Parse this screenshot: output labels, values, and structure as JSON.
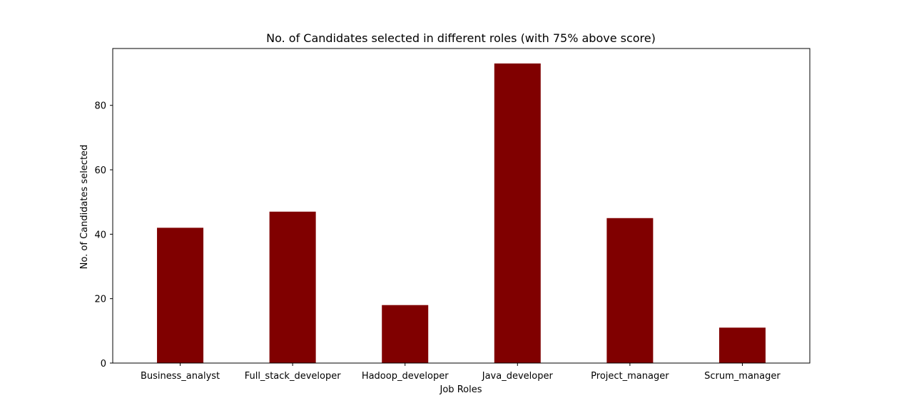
{
  "chart_data": {
    "type": "bar",
    "title": "No. of Candidates selected in different roles (with 75% above score)",
    "xlabel": "Job Roles",
    "ylabel": "No. of Candidates selected",
    "categories": [
      "Business_analyst",
      "Full_stack_developer",
      "Hadoop_developer",
      "Java_developer",
      "Project_manager",
      "Scrum_manager"
    ],
    "values": [
      42,
      47,
      18,
      93,
      45,
      11
    ],
    "ylim": [
      0,
      97.65
    ],
    "yticks": [
      0,
      20,
      40,
      60,
      80
    ],
    "bar_color": "#800000",
    "grid": false
  }
}
